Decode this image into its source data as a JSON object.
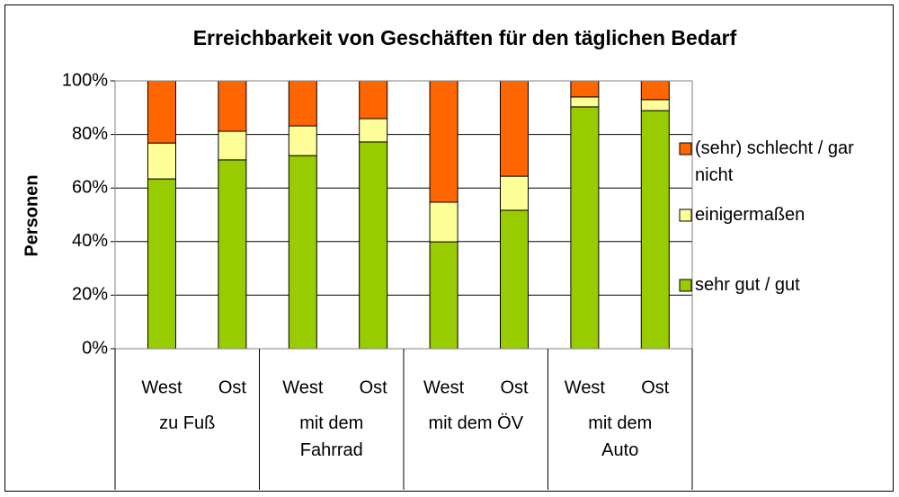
{
  "chart_data": {
    "type": "stacked_bar",
    "title": "Erreichbarkeit von Geschäften für den täglichen Bedarf",
    "y_label": "Personen",
    "categories": [
      "West",
      "Ost",
      "West",
      "Ost",
      "West",
      "Ost",
      "West",
      "Ost"
    ],
    "groups": [
      "zu Fuß",
      "mit dem Fahrrad",
      "mit dem ÖV",
      "mit dem Auto"
    ],
    "series": [
      {
        "name": "sehr gut / gut",
        "color": "#99cc00",
        "values": [
          63.4,
          70.5,
          72.1,
          77.2,
          39.9,
          51.7,
          90.3,
          88.9
        ]
      },
      {
        "name": "einigermaßen",
        "color": "#ffff99",
        "values": [
          13.4,
          10.7,
          11.1,
          8.7,
          14.8,
          12.7,
          3.7,
          4.1
        ]
      },
      {
        "name": "(sehr) schlecht / gar nicht",
        "color": "#ff6600",
        "values": [
          23.2,
          18.8,
          16.8,
          14.1,
          45.3,
          35.6,
          6.0,
          7.0
        ]
      }
    ],
    "ylim": [
      0,
      100
    ],
    "yticks": [
      {
        "value": 0,
        "label": "0%"
      },
      {
        "value": 20,
        "label": "20%"
      },
      {
        "value": 40,
        "label": "40%"
      },
      {
        "value": 60,
        "label": "60%"
      },
      {
        "value": 80,
        "label": "80%"
      },
      {
        "value": 100,
        "label": "100%"
      }
    ],
    "grid": true
  }
}
